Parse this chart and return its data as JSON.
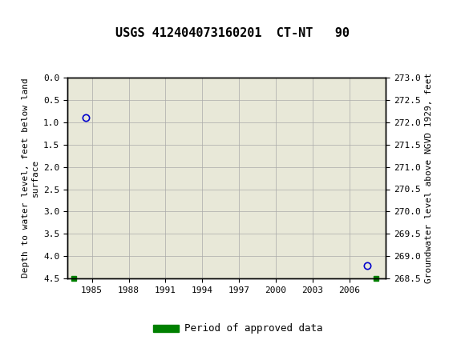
{
  "title": "USGS 412404073160201  CT-NT   90",
  "ylabel_left": "Depth to water level, feet below land\nsurface",
  "ylabel_right": "Groundwater level above NGVD 1929, feet",
  "xlim": [
    1983,
    2009
  ],
  "ylim_left": [
    0.0,
    4.5
  ],
  "ylim_right": [
    268.5,
    273.0
  ],
  "yticks_left": [
    0.0,
    0.5,
    1.0,
    1.5,
    2.0,
    2.5,
    3.0,
    3.5,
    4.0,
    4.5
  ],
  "yticks_right": [
    268.5,
    269.0,
    269.5,
    270.0,
    270.5,
    271.0,
    271.5,
    272.0,
    272.5,
    273.0
  ],
  "xticks": [
    1985,
    1988,
    1991,
    1994,
    1997,
    2000,
    2003,
    2006
  ],
  "data_points_x": [
    1984.5,
    2007.5
  ],
  "data_points_y": [
    0.9,
    4.2
  ],
  "point_color": "#0000cc",
  "point_marker": "o",
  "point_size": 6,
  "bar_x_start": 1983.5,
  "bar_x_end": 2008.2,
  "bar_color": "#008000",
  "header_color": "#006633",
  "plot_bg_color": "#e8e8d8",
  "grid_color": "#aaaaaa",
  "legend_label": "Period of approved data",
  "legend_color": "#008000"
}
